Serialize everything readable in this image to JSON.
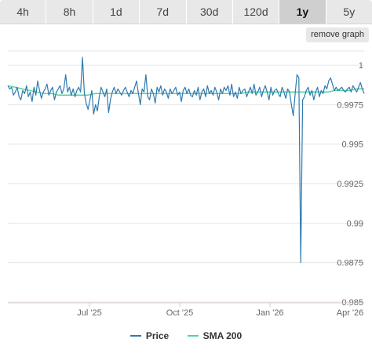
{
  "tabs": [
    {
      "label": "4h"
    },
    {
      "label": "8h"
    },
    {
      "label": "1d"
    },
    {
      "label": "7d"
    },
    {
      "label": "30d"
    },
    {
      "label": "120d"
    },
    {
      "label": "1y",
      "active": true
    },
    {
      "label": "5y"
    }
  ],
  "remove_graph_label": "remove graph",
  "colors": {
    "price": "#2f7ab0",
    "sma": "#4fd69b",
    "grid": "#e6e6e6"
  },
  "chart_data": {
    "type": "line",
    "x_ticks": [
      "Jul '25",
      "Oct '25",
      "Jan '26",
      "Apr '26"
    ],
    "y_ticks": [
      "1",
      "0.9975",
      "0.995",
      "0.9925",
      "0.99",
      "0.9875",
      "0.985"
    ],
    "ylim": [
      0.985,
      1.0005
    ],
    "grid": true,
    "legend_position": "bottom",
    "series": [
      {
        "name": "Price",
        "values": [
          0.9987,
          0.9985,
          0.9986,
          0.9981,
          0.9983,
          0.9986,
          0.998,
          0.9978,
          0.9984,
          0.9982,
          0.9987,
          0.998,
          0.9983,
          0.9977,
          0.9986,
          0.9981,
          0.999,
          0.9984,
          0.9979,
          0.9983,
          0.9985,
          0.9988,
          0.9981,
          0.9984,
          0.9986,
          0.9978,
          0.9983,
          0.9985,
          0.9987,
          0.9982,
          0.9985,
          0.9994,
          0.9983,
          0.9986,
          0.9981,
          0.9985,
          0.998,
          0.9984,
          0.9986,
          0.9983,
          1.0005,
          0.9982,
          0.9976,
          0.9972,
          0.9978,
          0.9984,
          0.9969,
          0.9975,
          0.9971,
          0.998,
          0.9986,
          0.9983,
          0.998,
          0.9985,
          0.997,
          0.9978,
          0.9983,
          0.9986,
          0.9982,
          0.9985,
          0.9983,
          0.9981,
          0.9984,
          0.9986,
          0.9983,
          0.998,
          0.9984,
          0.9982,
          0.9986,
          0.999,
          0.9982,
          0.9975,
          0.9985,
          0.9983,
          0.9994,
          0.998,
          0.9978,
          0.9985,
          0.9982,
          0.9976,
          0.9986,
          0.9983,
          0.9987,
          0.9981,
          0.9985,
          0.9983,
          0.9979,
          0.9985,
          0.9982,
          0.9984,
          0.9986,
          0.9981,
          0.9983,
          0.9977,
          0.9984,
          0.9986,
          0.9982,
          0.9985,
          0.9981,
          0.998,
          0.9984,
          0.9981,
          0.9986,
          0.9978,
          0.9983,
          0.9985,
          0.998,
          0.9987,
          0.9982,
          0.9984,
          0.9981,
          0.9986,
          0.9983,
          0.9978,
          0.9985,
          0.9982,
          0.9986,
          0.9984,
          0.9987,
          0.9981,
          0.9988,
          0.998,
          0.9983,
          0.9979,
          0.9986,
          0.9982,
          0.9984,
          0.9985,
          0.998,
          0.9983,
          0.9986,
          0.9982,
          0.9988,
          0.9981,
          0.9983,
          0.9986,
          0.998,
          0.9984,
          0.9987,
          0.9983,
          0.9978,
          0.9986,
          0.9981,
          0.9984,
          0.9985,
          0.9982,
          0.998,
          0.9986,
          0.9983,
          0.9979,
          0.9985,
          0.9983,
          0.9975,
          0.9968,
          0.9982,
          0.9994,
          0.9992,
          0.9875,
          0.9978,
          0.998,
          0.9984,
          0.9986,
          0.9981,
          0.9984,
          0.9978,
          0.9983,
          0.9986,
          0.998,
          0.9984,
          0.9982,
          0.9987,
          0.9985,
          0.999,
          0.9992,
          0.9988,
          0.9984,
          0.9986,
          0.9984,
          0.9985,
          0.9986,
          0.9984,
          0.9983,
          0.9985,
          0.9986,
          0.9983,
          0.9987,
          0.9985,
          0.9983,
          0.9986,
          0.9989,
          0.9985,
          0.9982
        ]
      },
      {
        "name": "SMA 200",
        "values": [
          0.9987,
          0.9986,
          0.9985,
          0.9984,
          0.9983,
          0.9982,
          0.9982,
          0.9981,
          0.9981,
          0.9981,
          0.9981,
          0.9981,
          0.9982,
          0.9982,
          0.9982,
          0.9982,
          0.9982,
          0.9982,
          0.9982,
          0.9982,
          0.9982,
          0.9982,
          0.9982,
          0.9982,
          0.9982,
          0.9982,
          0.9982,
          0.9982,
          0.9982,
          0.9982,
          0.9982,
          0.9982,
          0.9982,
          0.9983,
          0.9983,
          0.9983,
          0.9983,
          0.9983,
          0.9983,
          0.9983,
          0.9983,
          0.9983,
          0.9983,
          0.9983,
          0.9983,
          0.9984,
          0.9984,
          0.9984,
          0.9985,
          0.9985
        ]
      }
    ]
  },
  "legend": {
    "price_label": "Price",
    "sma_label": "SMA 200"
  }
}
